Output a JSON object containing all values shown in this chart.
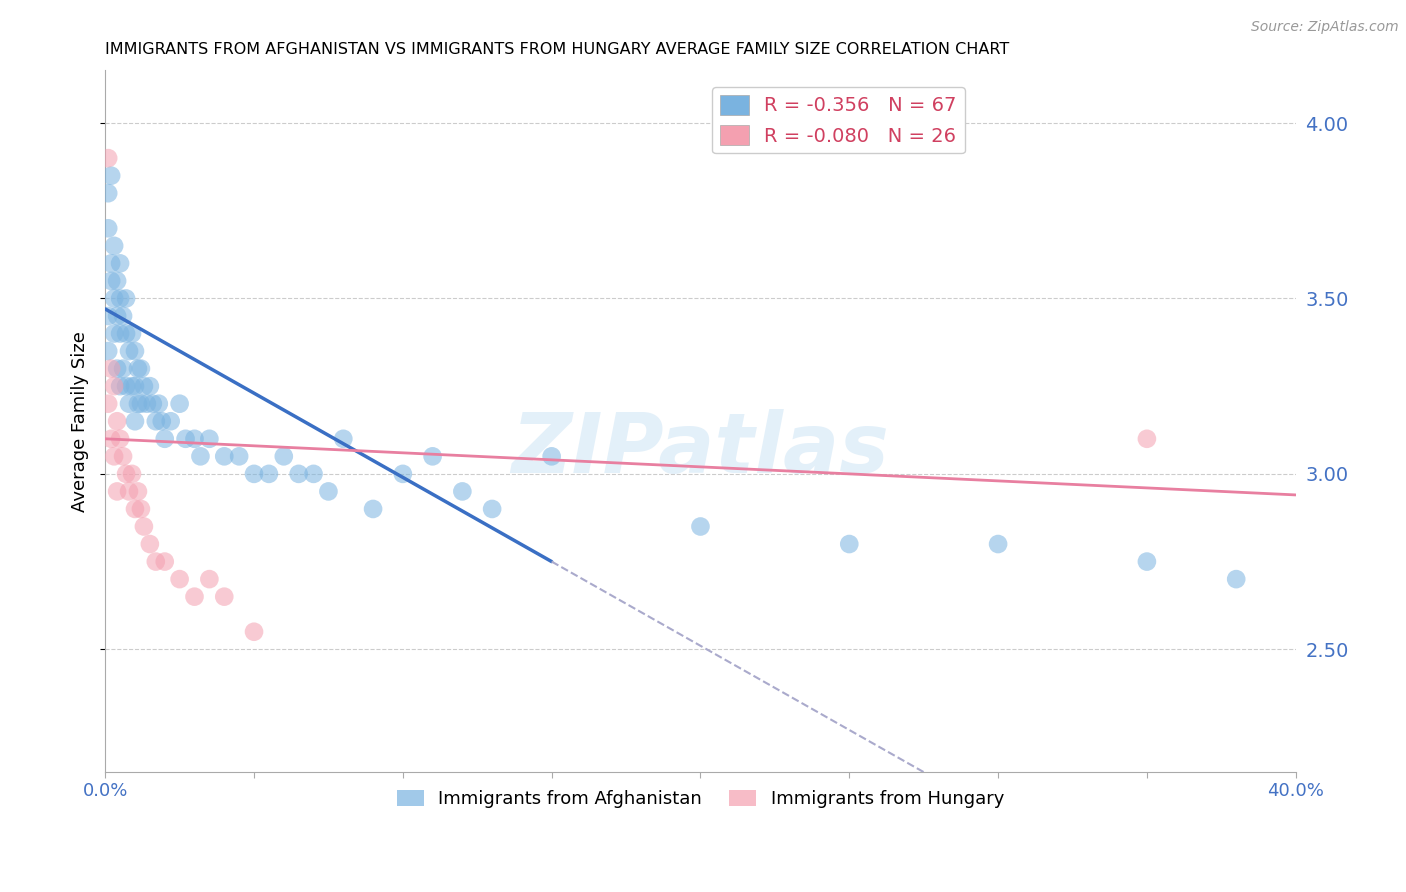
{
  "title": "IMMIGRANTS FROM AFGHANISTAN VS IMMIGRANTS FROM HUNGARY AVERAGE FAMILY SIZE CORRELATION CHART",
  "source": "Source: ZipAtlas.com",
  "ylabel": "Average Family Size",
  "right_yticks": [
    2.5,
    3.0,
    3.5,
    4.0
  ],
  "right_ytick_color": "#4472c4",
  "afghanistan_color": "#7ab3e0",
  "hungary_color": "#f4a0b0",
  "afghanistan_R": -0.356,
  "afghanistan_N": 67,
  "hungary_R": -0.08,
  "hungary_N": 26,
  "watermark": "ZIPatlas",
  "background_color": "#ffffff",
  "grid_color": "#cccccc",
  "xlim": [
    0.0,
    0.4
  ],
  "ylim": [
    2.15,
    4.15
  ],
  "blue_line_x0": 0.0,
  "blue_line_y0": 3.47,
  "blue_line_x1": 0.15,
  "blue_line_y1": 2.75,
  "blue_line_solid_end": 0.15,
  "blue_line_dash_end": 0.4,
  "pink_line_x0": 0.0,
  "pink_line_y0": 3.1,
  "pink_line_x1": 0.4,
  "pink_line_y1": 2.94,
  "afghanistan_x": [
    0.001,
    0.001,
    0.001,
    0.001,
    0.002,
    0.002,
    0.002,
    0.003,
    0.003,
    0.003,
    0.004,
    0.004,
    0.004,
    0.005,
    0.005,
    0.005,
    0.005,
    0.006,
    0.006,
    0.007,
    0.007,
    0.007,
    0.008,
    0.008,
    0.009,
    0.009,
    0.01,
    0.01,
    0.01,
    0.011,
    0.011,
    0.012,
    0.012,
    0.013,
    0.014,
    0.015,
    0.016,
    0.017,
    0.018,
    0.019,
    0.02,
    0.022,
    0.025,
    0.027,
    0.03,
    0.032,
    0.035,
    0.04,
    0.045,
    0.05,
    0.055,
    0.06,
    0.065,
    0.07,
    0.075,
    0.08,
    0.09,
    0.1,
    0.11,
    0.12,
    0.13,
    0.15,
    0.2,
    0.25,
    0.3,
    0.35,
    0.38
  ],
  "afghanistan_y": [
    3.8,
    3.7,
    3.45,
    3.35,
    3.85,
    3.6,
    3.55,
    3.65,
    3.5,
    3.4,
    3.55,
    3.45,
    3.3,
    3.6,
    3.5,
    3.4,
    3.25,
    3.45,
    3.3,
    3.5,
    3.4,
    3.25,
    3.35,
    3.2,
    3.4,
    3.25,
    3.35,
    3.25,
    3.15,
    3.3,
    3.2,
    3.3,
    3.2,
    3.25,
    3.2,
    3.25,
    3.2,
    3.15,
    3.2,
    3.15,
    3.1,
    3.15,
    3.2,
    3.1,
    3.1,
    3.05,
    3.1,
    3.05,
    3.05,
    3.0,
    3.0,
    3.05,
    3.0,
    3.0,
    2.95,
    3.1,
    2.9,
    3.0,
    3.05,
    2.95,
    2.9,
    3.05,
    2.85,
    2.8,
    2.8,
    2.75,
    2.7
  ],
  "hungary_x": [
    0.001,
    0.001,
    0.002,
    0.002,
    0.003,
    0.003,
    0.004,
    0.004,
    0.005,
    0.006,
    0.007,
    0.008,
    0.009,
    0.01,
    0.011,
    0.012,
    0.013,
    0.015,
    0.017,
    0.02,
    0.025,
    0.03,
    0.035,
    0.04,
    0.05,
    0.35
  ],
  "hungary_y": [
    3.9,
    3.2,
    3.3,
    3.1,
    3.25,
    3.05,
    3.15,
    2.95,
    3.1,
    3.05,
    3.0,
    2.95,
    3.0,
    2.9,
    2.95,
    2.9,
    2.85,
    2.8,
    2.75,
    2.75,
    2.7,
    2.65,
    2.7,
    2.65,
    2.55,
    3.1
  ]
}
